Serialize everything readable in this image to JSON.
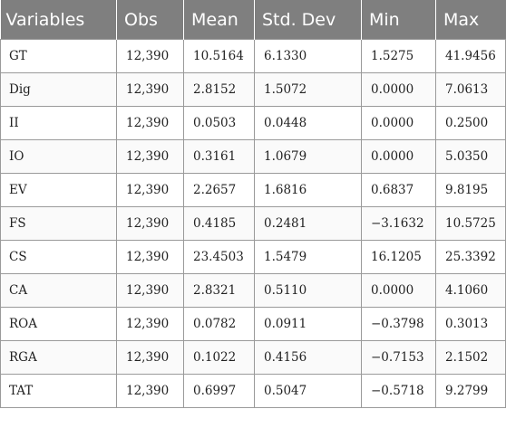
{
  "table": {
    "headers": [
      "Variables",
      "Obs",
      "Mean",
      "Std. Dev",
      "Min",
      "Max"
    ],
    "rows": [
      [
        "GT",
        "12,390",
        "10.5164",
        "6.1330",
        "1.5275",
        "41.9456"
      ],
      [
        "Dig",
        "12,390",
        "2.8152",
        "1.5072",
        "0.0000",
        "7.0613"
      ],
      [
        "II",
        "12,390",
        "0.0503",
        "0.0448",
        "0.0000",
        "0.2500"
      ],
      [
        "IO",
        "12,390",
        "0.3161",
        "1.0679",
        "0.0000",
        "5.0350"
      ],
      [
        "EV",
        "12,390",
        "2.2657",
        "1.6816",
        "0.6837",
        "9.8195"
      ],
      [
        "FS",
        "12,390",
        "0.4185",
        "0.2481",
        "−3.1632",
        "10.5725"
      ],
      [
        "CS",
        "12,390",
        "23.4503",
        "1.5479",
        "16.1205",
        "25.3392"
      ],
      [
        "CA",
        "12,390",
        "2.8321",
        "0.5110",
        "0.0000",
        "4.1060"
      ],
      [
        "ROA",
        "12,390",
        "0.0782",
        "0.0911",
        "−0.3798",
        "0.3013"
      ],
      [
        "RGA",
        "12,390",
        "0.1022",
        "0.4156",
        "−0.7153",
        "2.1502"
      ],
      [
        "TAT",
        "12,390",
        "0.6997",
        "0.5047",
        "−0.5718",
        "9.2799"
      ]
    ]
  }
}
